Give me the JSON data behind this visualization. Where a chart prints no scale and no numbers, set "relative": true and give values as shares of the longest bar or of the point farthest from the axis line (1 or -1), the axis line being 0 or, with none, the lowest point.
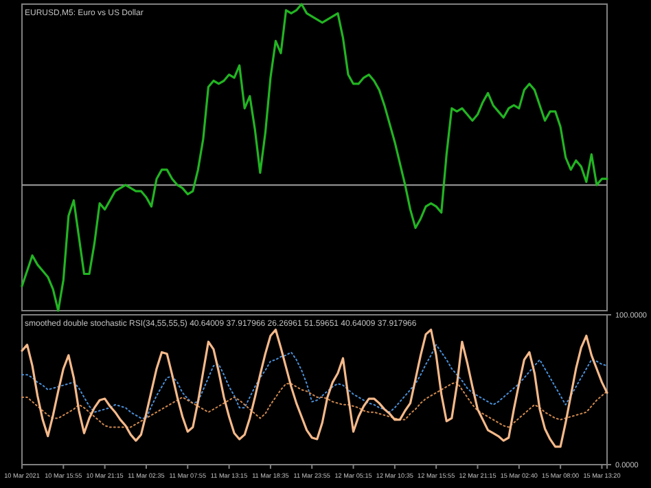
{
  "chart_data": [
    {
      "type": "line",
      "title": "EURUSD,M5:  Euro vs US Dollar",
      "relative": true,
      "categories": [
        null,
        null,
        null,
        null,
        null,
        null,
        null,
        null,
        null,
        null,
        null,
        null,
        null,
        null,
        null,
        null,
        null,
        null,
        null,
        null,
        null,
        null,
        null,
        null,
        null,
        null,
        null,
        null,
        null,
        null,
        null,
        null,
        null,
        null,
        null,
        null,
        null,
        null,
        null,
        null,
        null,
        null,
        null,
        null,
        null,
        null,
        null,
        null,
        null,
        null,
        null,
        null,
        null,
        null,
        null,
        null,
        null,
        null,
        null,
        null,
        null,
        null,
        null,
        null,
        null,
        null,
        null,
        null,
        null,
        null,
        null,
        null,
        null,
        null,
        null,
        null,
        null,
        null,
        null,
        null,
        null,
        null,
        null,
        null,
        null,
        null,
        null,
        null,
        null,
        null,
        null,
        null,
        null,
        null,
        null,
        null,
        null,
        null,
        null,
        null,
        null,
        null,
        null,
        null,
        null,
        null,
        null,
        null,
        null,
        null,
        null,
        null,
        null,
        null
      ],
      "series": [
        {
          "color": "#22b422",
          "values": [
            0.08,
            0.13,
            0.18,
            0.15,
            0.13,
            0.11,
            0.07,
            0,
            0.1,
            0.31,
            0.36,
            0.24,
            0.12,
            0.12,
            0.22,
            0.35,
            0.33,
            0.36,
            0.39,
            0.4,
            0.41,
            0.4,
            0.39,
            0.39,
            0.37,
            0.34,
            0.43,
            0.46,
            0.46,
            0.43,
            0.41,
            0.4,
            0.38,
            0.39,
            0.46,
            0.56,
            0.73,
            0.75,
            0.74,
            0.75,
            0.77,
            0.76,
            0.8,
            0.66,
            0.7,
            0.59,
            0.45,
            0.58,
            0.76,
            0.88,
            0.84,
            0.98,
            0.97,
            0.98,
            1,
            0.97,
            0.96,
            0.95,
            0.94,
            0.95,
            0.96,
            0.97,
            0.89,
            0.77,
            0.74,
            0.74,
            0.76,
            0.77,
            0.75,
            0.72,
            0.67,
            0.61,
            0.55,
            0.48,
            0.41,
            0.33,
            0.27,
            0.3,
            0.34,
            0.35,
            0.34,
            0.32,
            0.51,
            0.66,
            0.65,
            0.66,
            0.64,
            0.62,
            0.64,
            0.68,
            0.71,
            0.67,
            0.65,
            0.63,
            0.66,
            0.67,
            0.66,
            0.72,
            0.74,
            0.72,
            0.67,
            0.62,
            0.65,
            0.65,
            0.6,
            0.5,
            0.46,
            0.49,
            0.47,
            0.42,
            0.51,
            0.41,
            0.43,
            0.43
          ]
        }
      ],
      "ref_lines": [
        {
          "axis": "y",
          "value": 0.41,
          "color": "#a0a0a0"
        }
      ]
    },
    {
      "type": "line",
      "title": "smoothed double stochastic RSI(34,55,55,5) 40.64009 37.917966 26.26961 51.59651 40.64009 37.917966",
      "ylim": [
        0,
        100
      ],
      "yticks": [
        {
          "value": 100,
          "label": "100.0000"
        },
        {
          "value": 0,
          "label": "0.0000"
        }
      ],
      "categories": [
        "10 Mar 2021",
        null,
        null,
        null,
        null,
        null,
        null,
        null,
        "10 Mar 15:55",
        null,
        null,
        null,
        null,
        null,
        null,
        null,
        "10 Mar 21:15",
        null,
        null,
        null,
        null,
        null,
        null,
        null,
        "11 Mar 02:35",
        null,
        null,
        null,
        null,
        null,
        null,
        null,
        "11 Mar 07:55",
        null,
        null,
        null,
        null,
        null,
        null,
        null,
        "11 Mar 13:15",
        null,
        null,
        null,
        null,
        null,
        null,
        null,
        "11 Mar 18:35",
        null,
        null,
        null,
        null,
        null,
        null,
        null,
        "11 Mar 23:55",
        null,
        null,
        null,
        null,
        null,
        null,
        null,
        "12 Mar 05:15",
        null,
        null,
        null,
        null,
        null,
        null,
        null,
        "12 Mar 10:35",
        null,
        null,
        null,
        null,
        null,
        null,
        null,
        "12 Mar 15:55",
        null,
        null,
        null,
        null,
        null,
        null,
        null,
        "12 Mar 21:15",
        null,
        null,
        null,
        null,
        null,
        null,
        null,
        "15 Mar 02:40",
        null,
        null,
        null,
        null,
        null,
        null,
        null,
        "15 Mar 08:00",
        null,
        null,
        null,
        null,
        null,
        null,
        null,
        "15 Mar 13:20",
        null
      ],
      "series": [
        {
          "color": "#4a90d9",
          "line_style": "dotted",
          "values": [
            60,
            60,
            58,
            55,
            53,
            50,
            51,
            52,
            53,
            54,
            55,
            51,
            45,
            39,
            35,
            36,
            37,
            38,
            40,
            39,
            38,
            35,
            33,
            31,
            31,
            39,
            46,
            52,
            58,
            59,
            55,
            48,
            44,
            41,
            42,
            50,
            58,
            66,
            67,
            60,
            52,
            46,
            38,
            38,
            45,
            52,
            58,
            63,
            69,
            70,
            72,
            73,
            75,
            70,
            63,
            54,
            42,
            43,
            46,
            49,
            52,
            54,
            53,
            50,
            47,
            45,
            43,
            41,
            40,
            38,
            37,
            35,
            38,
            42,
            46,
            50,
            54,
            60,
            67,
            73,
            80,
            75,
            70,
            64,
            60,
            56,
            51,
            48,
            46,
            44,
            42,
            40,
            42,
            45,
            48,
            51,
            54,
            58,
            62,
            66,
            70,
            64,
            58,
            52,
            46,
            40,
            46,
            52,
            58,
            64,
            70,
            69,
            67,
            66
          ]
        },
        {
          "color": "#d08a50",
          "line_style": "dotted",
          "values": [
            45,
            45,
            42,
            39,
            36,
            33,
            31,
            31,
            33,
            35,
            37,
            40,
            38,
            35,
            32,
            29,
            26,
            25,
            25,
            25,
            25,
            25,
            27,
            29,
            31,
            33,
            35,
            37,
            39,
            41,
            43,
            45,
            43,
            41,
            39,
            37,
            35,
            37,
            39,
            41,
            43,
            45,
            43,
            40,
            37,
            34,
            31,
            34,
            40,
            45,
            50,
            54,
            54,
            52,
            50,
            49,
            47,
            45,
            45,
            44,
            42,
            41,
            40,
            40,
            39,
            38,
            36,
            35,
            35,
            34,
            33,
            32,
            31,
            30,
            30,
            34,
            37,
            41,
            44,
            46,
            48,
            50,
            52,
            54,
            55,
            50,
            45,
            40,
            36,
            34,
            32,
            30,
            28,
            26,
            25,
            28,
            31,
            34,
            37,
            40,
            38,
            35,
            33,
            31,
            30,
            31,
            32,
            33,
            34,
            35,
            39,
            43,
            46,
            49
          ]
        },
        {
          "color": "#f5b98a",
          "line_style": "solid",
          "values": [
            76,
            80,
            66,
            46,
            30,
            19,
            33,
            49,
            64,
            73,
            58,
            36,
            21,
            31,
            38,
            43,
            44,
            39,
            35,
            30,
            26,
            20,
            16,
            20,
            34,
            49,
            64,
            75,
            74,
            60,
            45,
            32,
            22,
            25,
            42,
            62,
            82,
            77,
            62,
            45,
            32,
            21,
            17,
            20,
            31,
            45,
            60,
            74,
            86,
            90,
            78,
            65,
            52,
            41,
            32,
            23,
            18,
            17,
            28,
            45,
            55,
            61,
            71,
            46,
            22,
            32,
            39,
            44,
            44,
            41,
            37,
            34,
            30,
            30,
            36,
            41,
            57,
            73,
            87,
            90,
            73,
            47,
            29,
            31,
            53,
            82,
            68,
            52,
            37,
            30,
            23,
            21,
            19,
            16,
            18,
            37,
            54,
            70,
            75,
            61,
            37,
            24,
            17,
            12,
            12,
            28,
            46,
            64,
            78,
            86,
            73,
            64,
            55,
            48
          ]
        }
      ]
    }
  ]
}
